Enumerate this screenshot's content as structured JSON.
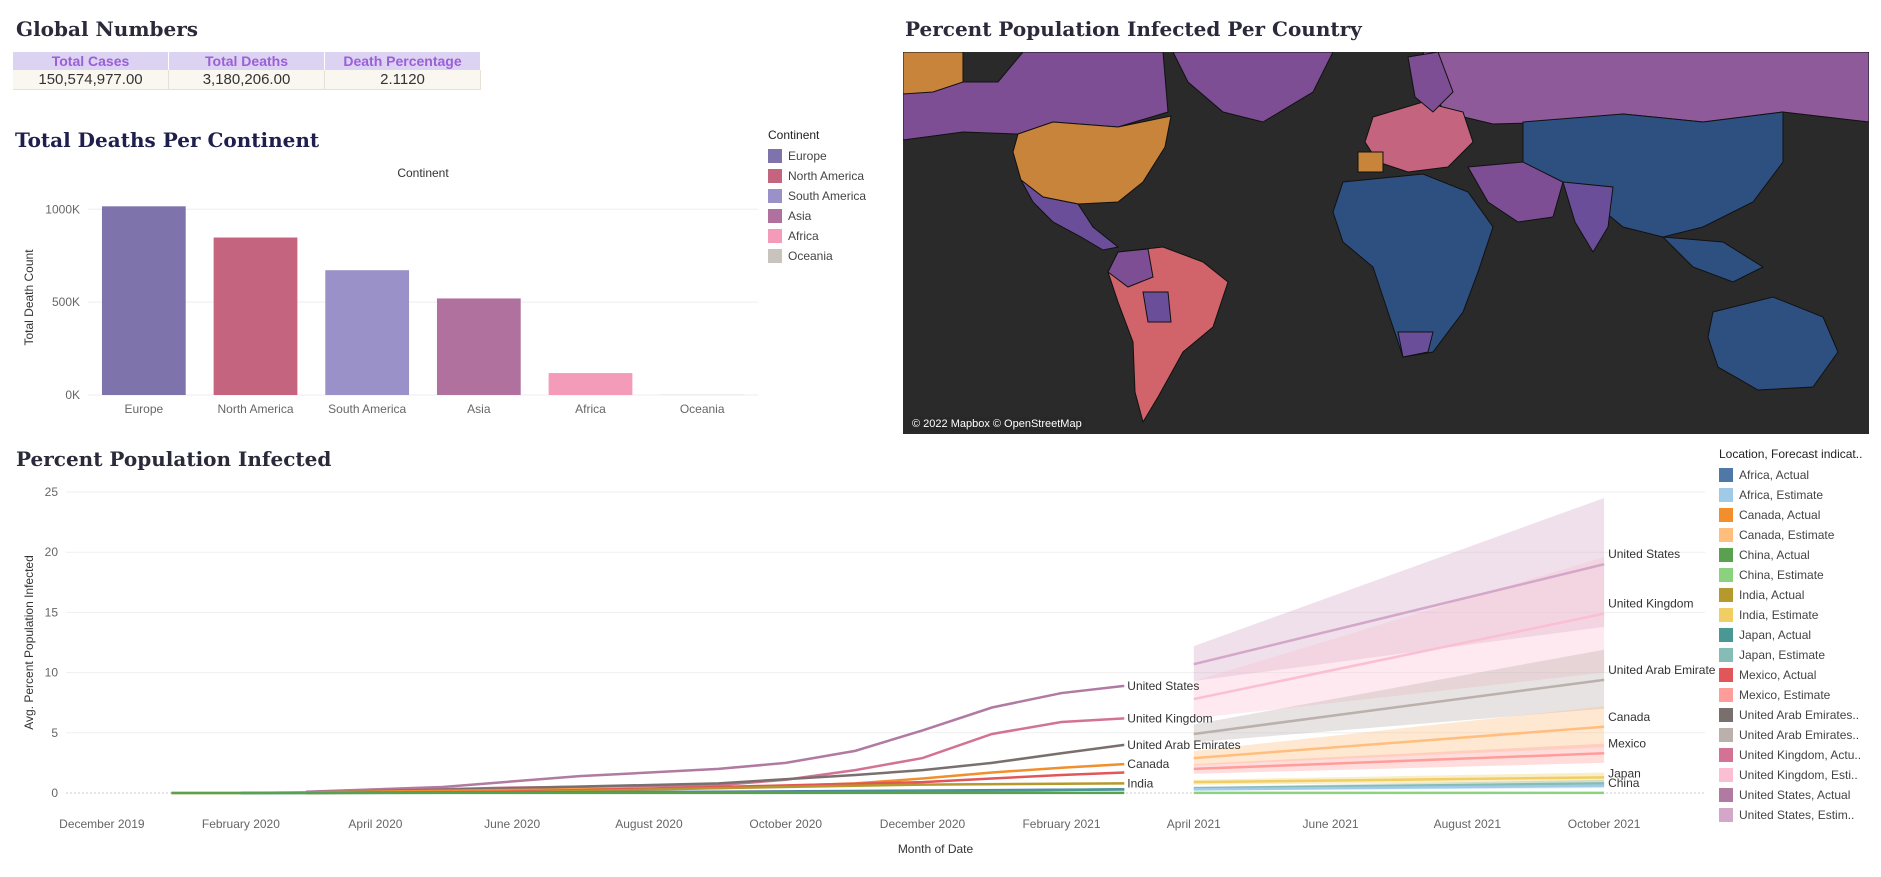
{
  "global": {
    "title": "Global Numbers",
    "headers": [
      "Total Cases",
      "Total Deaths",
      "Death Percentage"
    ],
    "values": [
      "150,574,977.00",
      "3,180,206.00",
      "2.1120"
    ]
  },
  "deaths_chart": {
    "title": "Total Deaths Per Continent"
  },
  "map": {
    "title": "Percent Population Infected Per Country",
    "attribution": "© 2022 Mapbox © OpenStreetMap",
    "colors": {
      "ocean": "#2a2a2a",
      "low": "#2e5080",
      "mid": "#6b4e9a",
      "high": "#8e5a9a",
      "salmon": "#d0646a",
      "orange": "#c9843c"
    }
  },
  "ppi_chart": {
    "title": "Percent Population Infected"
  },
  "continent_legend": {
    "title": "Continent",
    "items": [
      {
        "label": "Europe",
        "color": "#7f73ac"
      },
      {
        "label": "North America",
        "color": "#c5647f"
      },
      {
        "label": "South America",
        "color": "#9a91c8"
      },
      {
        "label": "Asia",
        "color": "#b0719f"
      },
      {
        "label": "Africa",
        "color": "#f39bb8"
      },
      {
        "label": "Oceania",
        "color": "#c8c3bd"
      }
    ]
  },
  "location_legend": {
    "title": "Location, Forecast indicat..",
    "items": [
      {
        "label": "Africa, Actual",
        "color": "#4e79a7"
      },
      {
        "label": "Africa, Estimate",
        "color": "#a0cbe8"
      },
      {
        "label": "Canada, Actual",
        "color": "#f28e2b"
      },
      {
        "label": "Canada, Estimate",
        "color": "#ffbe7d"
      },
      {
        "label": "China, Actual",
        "color": "#59a14f"
      },
      {
        "label": "China, Estimate",
        "color": "#8cd17d"
      },
      {
        "label": "India, Actual",
        "color": "#b6992d"
      },
      {
        "label": "India, Estimate",
        "color": "#f1ce63"
      },
      {
        "label": "Japan, Actual",
        "color": "#499894"
      },
      {
        "label": "Japan, Estimate",
        "color": "#86bcb6"
      },
      {
        "label": "Mexico, Actual",
        "color": "#e15759"
      },
      {
        "label": "Mexico, Estimate",
        "color": "#ff9d9a"
      },
      {
        "label": "United Arab Emirates..",
        "color": "#79706e"
      },
      {
        "label": "United Arab Emirates..",
        "color": "#bab0ac"
      },
      {
        "label": "United Kingdom, Actu..",
        "color": "#d37295"
      },
      {
        "label": "United Kingdom, Esti..",
        "color": "#fabfd2"
      },
      {
        "label": "United States, Actual",
        "color": "#b07aa1"
      },
      {
        "label": "United States, Estim..",
        "color": "#d4a6c8"
      }
    ]
  },
  "chart_data": [
    {
      "type": "bar",
      "title": "Continent",
      "xlabel": "",
      "ylabel": "Total Death Count",
      "categories": [
        "Europe",
        "North America",
        "South America",
        "Asia",
        "Africa",
        "Oceania"
      ],
      "values": [
        1016000,
        848000,
        672000,
        520000,
        118000,
        1100
      ],
      "colors": [
        "#7f73ac",
        "#c5647f",
        "#9a91c8",
        "#b0719f",
        "#f39bb8",
        "#c8c3bd"
      ],
      "ylim": [
        0,
        1050000
      ],
      "yticks": [
        0,
        500000,
        1000000
      ],
      "ytick_labels": [
        "0K",
        "500K",
        "1000K"
      ]
    },
    {
      "type": "line",
      "title": "",
      "xlabel": "Month of Date",
      "ylabel": "Avg. Percent Population Infected",
      "xlim": [
        "2019-11-15",
        "2021-11-15"
      ],
      "ylim": [
        0,
        25
      ],
      "yticks": [
        0,
        5,
        10,
        15,
        20,
        25
      ],
      "xticks": [
        {
          "date": "2019-12-01",
          "label": "December 2019"
        },
        {
          "date": "2020-02-01",
          "label": "February 2020"
        },
        {
          "date": "2020-04-01",
          "label": "April 2020"
        },
        {
          "date": "2020-06-01",
          "label": "June 2020"
        },
        {
          "date": "2020-08-01",
          "label": "August 2020"
        },
        {
          "date": "2020-10-01",
          "label": "October 2020"
        },
        {
          "date": "2020-12-01",
          "label": "December 2020"
        },
        {
          "date": "2021-02-01",
          "label": "February 2021"
        },
        {
          "date": "2021-04-01",
          "label": "April 2021"
        },
        {
          "date": "2021-06-01",
          "label": "June 2021"
        },
        {
          "date": "2021-08-01",
          "label": "August 2021"
        },
        {
          "date": "2021-10-01",
          "label": "October 2021"
        }
      ],
      "actual": [
        {
          "label": "United States",
          "color": "#b07aa1",
          "x": [
            "2020-03-01",
            "2020-05-01",
            "2020-07-01",
            "2020-09-01",
            "2020-10-01",
            "2020-11-01",
            "2020-12-01",
            "2021-01-01",
            "2021-02-01",
            "2021-03-01"
          ],
          "y": [
            0.1,
            0.5,
            1.4,
            2.0,
            2.5,
            3.5,
            5.2,
            7.1,
            8.3,
            8.9
          ]
        },
        {
          "label": "United Kingdom",
          "color": "#d37295",
          "x": [
            "2020-03-01",
            "2020-06-01",
            "2020-09-01",
            "2020-10-01",
            "2020-11-01",
            "2020-12-01",
            "2021-01-01",
            "2021-02-01",
            "2021-03-01"
          ],
          "y": [
            0.05,
            0.45,
            0.65,
            1.1,
            1.9,
            2.9,
            4.9,
            5.9,
            6.2
          ]
        },
        {
          "label": "United Arab Emirates",
          "color": "#79706e",
          "x": [
            "2020-03-01",
            "2020-06-01",
            "2020-09-01",
            "2020-11-01",
            "2020-12-01",
            "2021-01-01",
            "2021-02-01",
            "2021-03-01"
          ],
          "y": [
            0.05,
            0.4,
            0.8,
            1.5,
            1.9,
            2.5,
            3.3,
            4.0
          ]
        },
        {
          "label": "Canada",
          "color": "#f28e2b",
          "x": [
            "2020-01-01",
            "2020-02-01",
            "2020-03-01",
            "2020-06-01",
            "2020-09-01",
            "2020-11-01",
            "2020-12-01",
            "2021-01-01",
            "2021-02-01",
            "2021-03-01"
          ],
          "y": [
            0.0,
            0.0,
            0.05,
            0.25,
            0.4,
            0.8,
            1.2,
            1.7,
            2.1,
            2.4
          ]
        },
        {
          "label": "",
          "color": "#e15759",
          "x": [
            "2020-03-01",
            "2020-06-01",
            "2020-09-01",
            "2020-12-01",
            "2021-01-01",
            "2021-02-01",
            "2021-03-01"
          ],
          "y": [
            0.0,
            0.1,
            0.5,
            0.9,
            1.2,
            1.5,
            1.7
          ]
        },
        {
          "label": "India",
          "color": "#b6992d",
          "x": [
            "2020-03-01",
            "2020-06-01",
            "2020-09-01",
            "2020-12-01",
            "2021-03-01"
          ],
          "y": [
            0.0,
            0.05,
            0.4,
            0.7,
            0.8
          ]
        },
        {
          "label": "",
          "color": "#4e79a7",
          "x": [
            "2020-02-01",
            "2020-06-01",
            "2020-09-01",
            "2020-12-01",
            "2021-03-01"
          ],
          "y": [
            0.0,
            0.05,
            0.1,
            0.2,
            0.3
          ]
        },
        {
          "label": "",
          "color": "#499894",
          "x": [
            "2020-02-01",
            "2020-09-01",
            "2020-12-01",
            "2021-03-01"
          ],
          "y": [
            0.0,
            0.05,
            0.15,
            0.3
          ]
        },
        {
          "label": "",
          "color": "#59a14f",
          "x": [
            "2020-01-01",
            "2020-06-01",
            "2021-03-01"
          ],
          "y": [
            0.0,
            0.01,
            0.01
          ]
        }
      ],
      "estimate": [
        {
          "label": "United States",
          "color": "#d4a6c8",
          "x": [
            "2021-04-01",
            "2021-10-01"
          ],
          "y": [
            10.7,
            19.0
          ],
          "lower": [
            9.3,
            13.8
          ],
          "upper": [
            12.2,
            24.5
          ]
        },
        {
          "label": "United Kingdom",
          "color": "#fabfd2",
          "x": [
            "2021-04-01",
            "2021-10-01"
          ],
          "y": [
            7.8,
            14.9
          ],
          "lower": [
            6.2,
            10.0
          ],
          "upper": [
            9.3,
            19.6
          ]
        },
        {
          "label": "United Arab Emirates",
          "color": "#bab0ac",
          "x": [
            "2021-04-01",
            "2021-10-01"
          ],
          "y": [
            4.9,
            9.4
          ],
          "lower": [
            4.2,
            7.0
          ],
          "upper": [
            5.7,
            11.9
          ]
        },
        {
          "label": "Canada",
          "color": "#ffbe7d",
          "x": [
            "2021-04-01",
            "2021-10-01"
          ],
          "y": [
            2.9,
            5.5
          ],
          "lower": [
            2.3,
            3.8
          ],
          "upper": [
            3.5,
            7.2
          ]
        },
        {
          "label": "Mexico",
          "color": "#ff9d9a",
          "x": [
            "2021-04-01",
            "2021-10-01"
          ],
          "y": [
            2.0,
            3.3
          ],
          "lower": [
            1.6,
            2.5
          ],
          "upper": [
            2.4,
            4.1
          ]
        },
        {
          "label": "",
          "color": "#f1ce63",
          "x": [
            "2021-04-01",
            "2021-10-01"
          ],
          "y": [
            0.9,
            1.3
          ],
          "lower": [
            0.7,
            0.9
          ],
          "upper": [
            1.1,
            1.7
          ]
        },
        {
          "label": "Japan",
          "color": "#86bcb6",
          "x": [
            "2021-04-01",
            "2021-10-01"
          ],
          "y": [
            0.4,
            0.8
          ],
          "lower": [
            0.3,
            0.5
          ],
          "upper": [
            0.5,
            1.1
          ]
        },
        {
          "label": "",
          "color": "#a0cbe8",
          "x": [
            "2021-04-01",
            "2021-10-01"
          ],
          "y": [
            0.3,
            0.6
          ],
          "lower": [
            0.2,
            0.4
          ],
          "upper": [
            0.4,
            0.8
          ]
        },
        {
          "label": "China",
          "color": "#8cd17d",
          "x": [
            "2021-04-01",
            "2021-10-01"
          ],
          "y": [
            0.01,
            0.01
          ],
          "lower": [
            0.0,
            0.0
          ],
          "upper": [
            0.02,
            0.02
          ]
        }
      ]
    }
  ]
}
